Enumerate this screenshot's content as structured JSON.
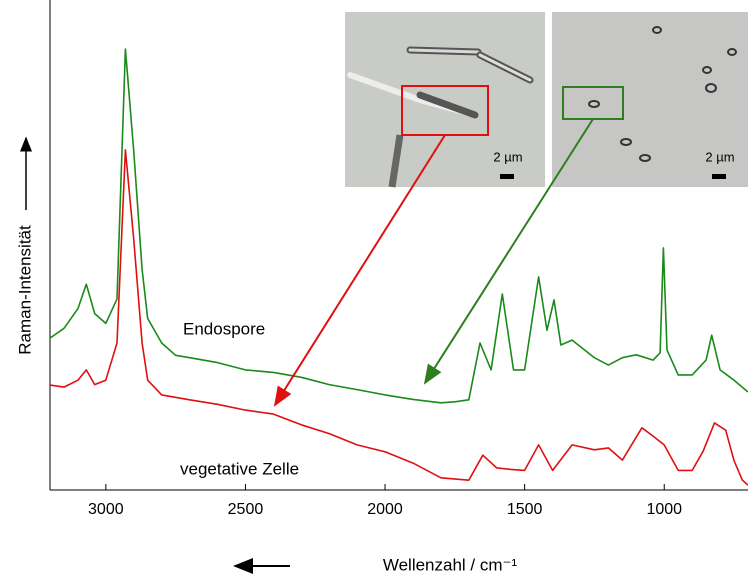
{
  "chart_data": {
    "type": "line",
    "x_label": "Wellenzahl / cm⁻¹",
    "y_label": "Raman-Intensität",
    "xlim": [
      3200,
      700
    ],
    "ylim": [
      0,
      100
    ],
    "xticks": [
      3000,
      2500,
      2000,
      1500,
      1000
    ],
    "annotations": [
      "Endospore",
      "vegetative Zelle"
    ],
    "inset_scale_labels": [
      "2 µm",
      "2 µm"
    ],
    "series": [
      {
        "name": "Endospore",
        "color": "#1a8a1a",
        "x": [
          3200,
          3150,
          3100,
          3070,
          3040,
          3000,
          2960,
          2930,
          2900,
          2870,
          2850,
          2800,
          2750,
          2700,
          2600,
          2500,
          2400,
          2300,
          2200,
          2100,
          2000,
          1900,
          1800,
          1750,
          1700,
          1660,
          1620,
          1580,
          1540,
          1500,
          1450,
          1420,
          1395,
          1370,
          1330,
          1250,
          1200,
          1150,
          1100,
          1040,
          1015,
          1003,
          990,
          950,
          900,
          850,
          830,
          800,
          750,
          700
        ],
        "values": [
          31,
          33,
          37,
          42,
          36,
          34,
          39,
          90,
          69,
          45,
          35,
          30,
          27.5,
          27,
          26,
          24.5,
          24,
          23,
          21.5,
          20.5,
          19.4,
          18.5,
          17.8,
          18,
          18.4,
          30,
          24.5,
          40,
          24.5,
          24.5,
          43.5,
          32.6,
          38.8,
          29.6,
          30.6,
          27,
          25.5,
          27,
          27.6,
          26.5,
          28,
          49.4,
          28.6,
          23.5,
          23.5,
          26.5,
          31.6,
          24.5,
          22.4,
          20
        ]
      },
      {
        "name": "vegetative Zelle",
        "color": "#e01010",
        "x": [
          3200,
          3150,
          3100,
          3070,
          3040,
          3000,
          2960,
          2930,
          2900,
          2870,
          2850,
          2800,
          2700,
          2600,
          2500,
          2400,
          2300,
          2200,
          2100,
          2000,
          1900,
          1800,
          1700,
          1650,
          1600,
          1550,
          1500,
          1450,
          1400,
          1330,
          1250,
          1200,
          1150,
          1080,
          1040,
          1000,
          950,
          900,
          860,
          820,
          780,
          750,
          720,
          700
        ],
        "values": [
          21.4,
          21,
          22.4,
          24.5,
          21.5,
          22.4,
          30,
          69.4,
          51,
          30,
          22.4,
          19.4,
          18.4,
          17.5,
          16.3,
          15.5,
          13.3,
          11.5,
          9.2,
          7.8,
          5.5,
          2.5,
          2,
          7.1,
          4.5,
          4.2,
          4,
          9.2,
          4,
          9.2,
          8.2,
          8.6,
          6.1,
          12.7,
          11,
          9.2,
          4,
          4,
          8,
          13.7,
          12.2,
          6,
          2,
          1
        ]
      }
    ]
  }
}
